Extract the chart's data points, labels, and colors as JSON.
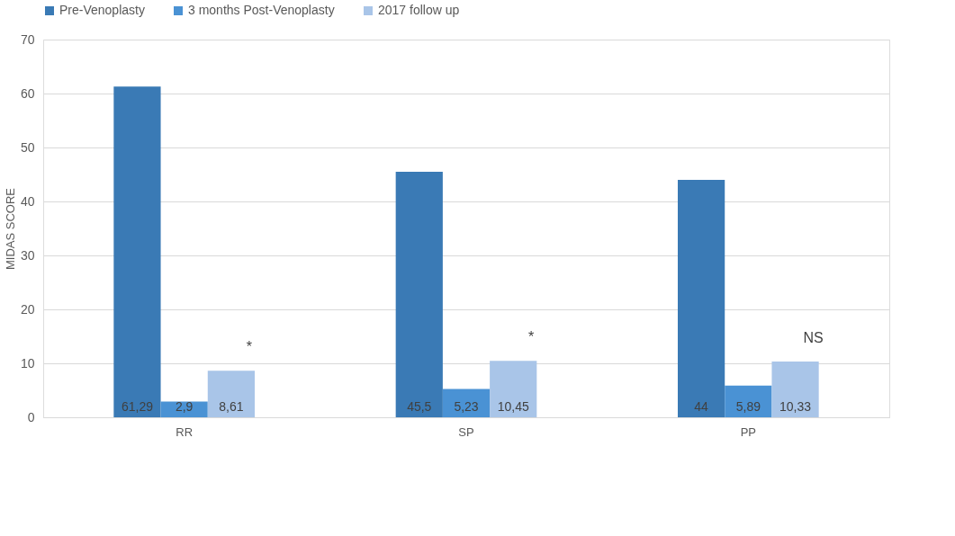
{
  "chart_data": {
    "type": "bar",
    "ylabel": "MIDAS SCORE",
    "categories": [
      "RR",
      "SP",
      "PP"
    ],
    "series": [
      {
        "name": "Pre-Venoplasty",
        "color": "#3a7ab5",
        "values": [
          61.29,
          45.5,
          44
        ],
        "value_labels": [
          "61,29",
          "45,5",
          "44"
        ]
      },
      {
        "name": "3 months Post-Venoplasty",
        "color": "#4a92d4",
        "values": [
          2.9,
          5.23,
          5.89
        ],
        "value_labels": [
          "2,9",
          "5,23",
          "5,89"
        ]
      },
      {
        "name": "2017 follow up",
        "color": "#a9c5e8",
        "values": [
          8.61,
          10.45,
          10.33
        ],
        "value_labels": [
          "8,61",
          "10,45",
          "10,33"
        ]
      }
    ],
    "ylim": [
      0,
      70
    ],
    "yticks": [
      0,
      10,
      20,
      30,
      40,
      50,
      60,
      70
    ],
    "grid": "y",
    "legend": "top",
    "annotations": [
      "*",
      "*",
      "NS"
    ]
  }
}
